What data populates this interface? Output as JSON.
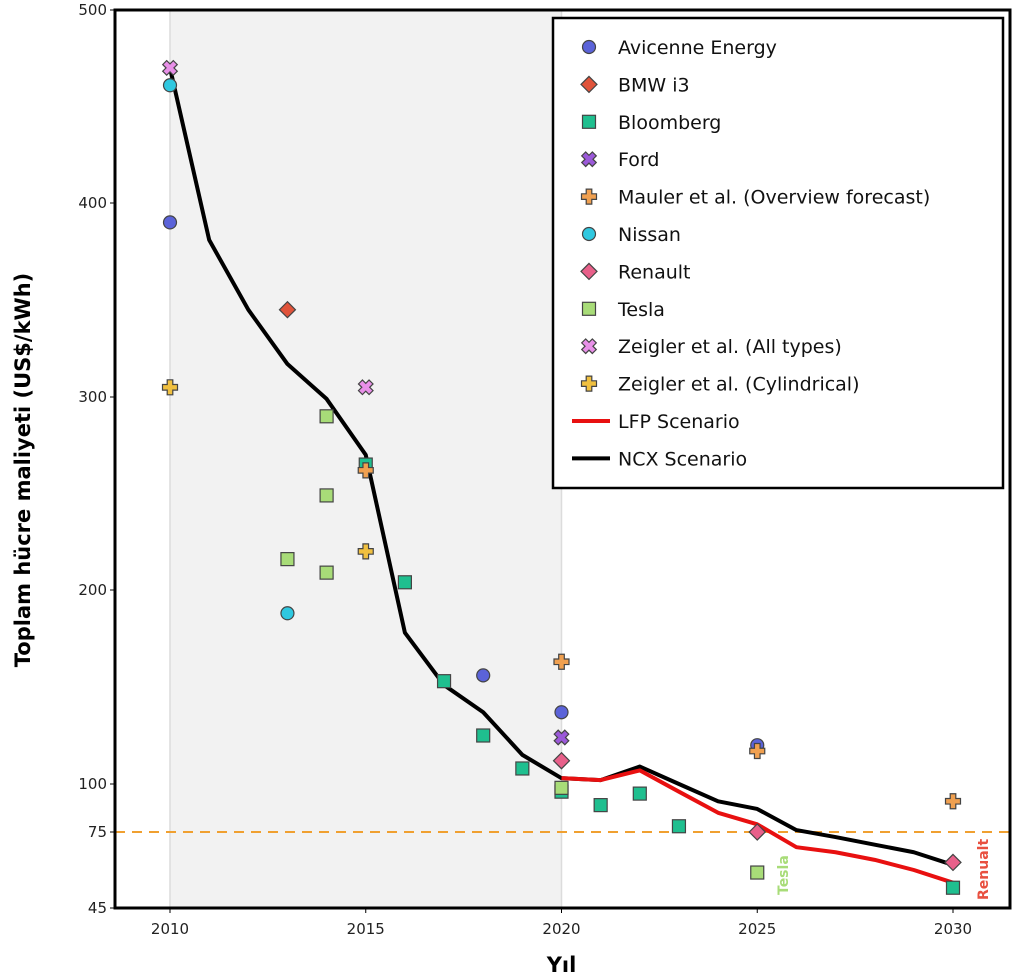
{
  "chart_data": {
    "type": "scatter",
    "xlabel": "Yıl",
    "ylabel": "Toplam hücre maliyeti  (US$/kWh)",
    "xlim": [
      2009,
      2031.4
    ],
    "ylim": [
      45,
      500
    ],
    "x_ticks": [
      2010,
      2015,
      2020,
      2025,
      2030
    ],
    "y_ticks": [
      45,
      75,
      100,
      200,
      300,
      400,
      500
    ],
    "shaded_region": [
      2010,
      2020
    ],
    "reference_line": {
      "y": 75,
      "color": "#f0a030",
      "style": "dashed"
    },
    "legend_placement": "top-right",
    "series": [
      {
        "name": "Avicenne Energy",
        "marker": "circle",
        "color": "#5b63d9",
        "points": [
          [
            2010,
            390
          ],
          [
            2018,
            156
          ],
          [
            2020,
            137
          ],
          [
            2025,
            120
          ]
        ]
      },
      {
        "name": "BMW i3",
        "marker": "diamond",
        "color": "#e0533a",
        "points": [
          [
            2013,
            345
          ]
        ]
      },
      {
        "name": "Bloomberg",
        "marker": "square",
        "color": "#1fbf8f",
        "points": [
          [
            2015,
            265
          ],
          [
            2016,
            204
          ],
          [
            2017,
            153
          ],
          [
            2018,
            125
          ],
          [
            2019,
            108
          ],
          [
            2020,
            96
          ],
          [
            2021,
            89
          ],
          [
            2022,
            95
          ],
          [
            2023,
            78
          ],
          [
            2030,
            53
          ]
        ]
      },
      {
        "name": "Ford",
        "marker": "x",
        "color": "#9b59d9",
        "points": [
          [
            2020,
            124
          ]
        ]
      },
      {
        "name": "Mauler et al. (Overview forecast)",
        "marker": "plus",
        "color": "#f0a050",
        "points": [
          [
            2015,
            262
          ],
          [
            2020,
            163
          ],
          [
            2025,
            117
          ],
          [
            2030,
            91
          ]
        ]
      },
      {
        "name": "Nissan",
        "marker": "circle",
        "color": "#2fc8e0",
        "points": [
          [
            2010,
            461
          ],
          [
            2013,
            188
          ]
        ]
      },
      {
        "name": "Renualt",
        "marker": "diamond",
        "color": "#e8608a",
        "points": [
          [
            2020,
            112
          ],
          [
            2025,
            75
          ],
          [
            2030,
            63
          ]
        ]
      },
      {
        "name": "Tesla",
        "marker": "square",
        "color": "#a8dc78",
        "points": [
          [
            2013,
            216
          ],
          [
            2014,
            290
          ],
          [
            2014,
            249
          ],
          [
            2014,
            209
          ],
          [
            2020,
            98
          ],
          [
            2025,
            59
          ]
        ]
      },
      {
        "name": "Zeigler et al. (All types)",
        "marker": "x",
        "color": "#e890e8",
        "points": [
          [
            2010,
            470
          ],
          [
            2015,
            305
          ]
        ]
      },
      {
        "name": "Zeigler et al. (Cylindrical)",
        "marker": "plus",
        "color": "#f0c040",
        "points": [
          [
            2010,
            305
          ],
          [
            2015,
            220
          ]
        ]
      }
    ],
    "lines": [
      {
        "name": "LFP Scenario",
        "color": "#e81010",
        "points": [
          [
            2020,
            103
          ],
          [
            2021,
            102
          ],
          [
            2022,
            107
          ],
          [
            2023,
            96
          ],
          [
            2024,
            85
          ],
          [
            2025,
            79
          ],
          [
            2026,
            69
          ],
          [
            2027,
            67
          ],
          [
            2028,
            64
          ],
          [
            2029,
            60
          ],
          [
            2030,
            55
          ]
        ]
      },
      {
        "name": "NCX Scenario",
        "color": "#000000",
        "points": [
          [
            2010,
            470
          ],
          [
            2011,
            381
          ],
          [
            2012,
            345
          ],
          [
            2013,
            317
          ],
          [
            2014,
            299
          ],
          [
            2015,
            270
          ],
          [
            2016,
            178
          ],
          [
            2017,
            151
          ],
          [
            2018,
            137
          ],
          [
            2019,
            115
          ],
          [
            2020,
            103
          ],
          [
            2021,
            102
          ],
          [
            2022,
            109
          ],
          [
            2023,
            100
          ],
          [
            2024,
            91
          ],
          [
            2025,
            87
          ],
          [
            2026,
            76
          ],
          [
            2027,
            73
          ],
          [
            2028,
            70
          ],
          [
            2029,
            67
          ],
          [
            2030,
            62
          ]
        ]
      }
    ],
    "legend": [
      "Avicenne Energy",
      "BMW i3",
      "Bloomberg",
      "Ford",
      "Mauler et al. (Overview forecast)",
      "Nissan",
      "Renault",
      "Tesla",
      "Zeigler et al. (All types)",
      "Zeigler et al. (Cylindrical)",
      "LFP Scenario",
      "NCX Scenario"
    ],
    "annotations": [
      {
        "text": "Tesla",
        "color": "#a8dc78"
      },
      {
        "text": "Renualt",
        "color": "#e85040"
      }
    ]
  }
}
